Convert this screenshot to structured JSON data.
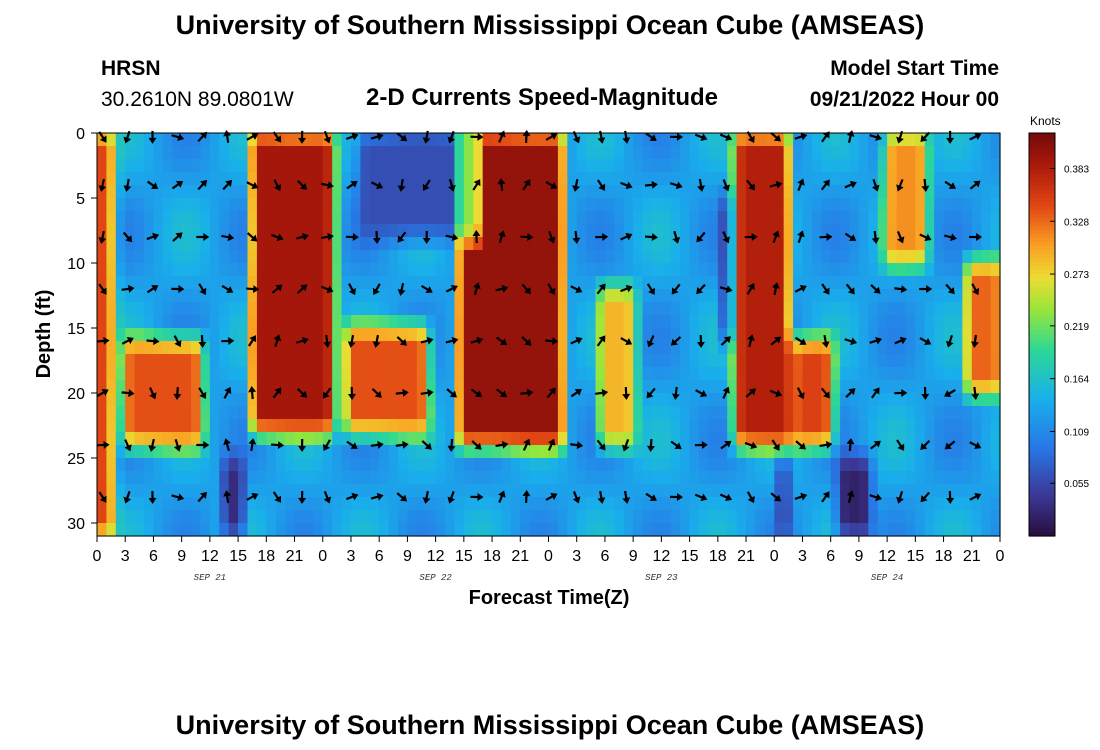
{
  "header": {
    "title": "University of Southern Mississippi Ocean Cube (AMSEAS)",
    "station": "HRSN",
    "coordinates": "30.2610N  89.0801W",
    "subtitle": "2-D Currents Speed-Magnitude",
    "model_start_label": "Model Start Time",
    "model_start_value": "09/21/2022 Hour 00"
  },
  "footer": {
    "title": "University of Southern Mississippi Ocean Cube (AMSEAS)"
  },
  "chart_data": {
    "type": "heatmap",
    "title": "2-D Currents Speed-Magnitude",
    "xlabel": "Forecast Time(Z)",
    "ylabel": "Depth (ft)",
    "x_range_hours": [
      0,
      96
    ],
    "ylim": [
      0,
      31
    ],
    "y_ticks": [
      0,
      5,
      10,
      15,
      20,
      25,
      30
    ],
    "x_tick_labels": [
      "0",
      "3",
      "6",
      "9",
      "12",
      "15",
      "18",
      "21",
      "0",
      "3",
      "6",
      "9",
      "12",
      "15",
      "18",
      "21",
      "0",
      "3",
      "6",
      "9",
      "12",
      "15",
      "18",
      "21",
      "0",
      "3",
      "6",
      "9",
      "12",
      "15",
      "18",
      "21",
      "0"
    ],
    "date_labels": [
      {
        "label": "SEP 21",
        "hour": 12
      },
      {
        "label": "SEP 22",
        "hour": 36
      },
      {
        "label": "SEP 23",
        "hour": 60
      },
      {
        "label": "SEP 24",
        "hour": 84
      }
    ],
    "colorbar": {
      "unit": "Knots",
      "range": [
        0.0,
        0.42
      ],
      "ticks": [
        "0.383",
        "0.328",
        "0.273",
        "0.219",
        "0.164",
        "0.109",
        "0.055"
      ],
      "tick_values": [
        0.383,
        0.328,
        0.273,
        0.219,
        0.164,
        0.109,
        0.055
      ]
    },
    "speed_features": [
      {
        "t_start": 0.0,
        "t_end": 1.6,
        "depth_start": 0,
        "depth_end": 31,
        "speed": 0.36
      },
      {
        "t_start": 16.5,
        "t_end": 25.0,
        "depth_start": 0,
        "depth_end": 23,
        "speed": 0.39
      },
      {
        "t_start": 38.5,
        "t_end": 49.5,
        "depth_start": 0,
        "depth_end": 24,
        "speed": 0.4
      },
      {
        "t_start": 68.0,
        "t_end": 73.5,
        "depth_start": 0,
        "depth_end": 24,
        "speed": 0.38
      },
      {
        "t_start": 84.0,
        "t_end": 88.0,
        "depth_start": 0,
        "depth_end": 10,
        "speed": 0.31
      },
      {
        "t_start": 92.5,
        "t_end": 96.0,
        "depth_start": 10,
        "depth_end": 20,
        "speed": 0.33
      },
      {
        "t_start": 3.0,
        "t_end": 11.0,
        "depth_start": 16,
        "depth_end": 24,
        "speed": 0.34
      },
      {
        "t_start": 26.5,
        "t_end": 35.0,
        "depth_start": 15,
        "depth_end": 23,
        "speed": 0.34
      },
      {
        "t_start": 53.5,
        "t_end": 57.0,
        "depth_start": 12,
        "depth_end": 24,
        "speed": 0.29
      },
      {
        "t_start": 74.0,
        "t_end": 78.0,
        "depth_start": 16,
        "depth_end": 24,
        "speed": 0.35
      },
      {
        "t_start": 13.5,
        "t_end": 15.5,
        "depth_start": 25,
        "depth_end": 31,
        "speed": 0.03
      },
      {
        "t_start": 28.0,
        "t_end": 40.5,
        "depth_start": 0,
        "depth_end": 8,
        "speed": 0.06
      },
      {
        "t_start": 66.5,
        "t_end": 67.5,
        "depth_start": 5,
        "depth_end": 16,
        "speed": 0.04
      },
      {
        "t_start": 72.5,
        "t_end": 73.5,
        "depth_start": 25,
        "depth_end": 31,
        "speed": 0.04
      },
      {
        "t_start": 79.0,
        "t_end": 82.0,
        "depth_start": 25,
        "depth_end": 31,
        "speed": 0.02
      }
    ]
  }
}
